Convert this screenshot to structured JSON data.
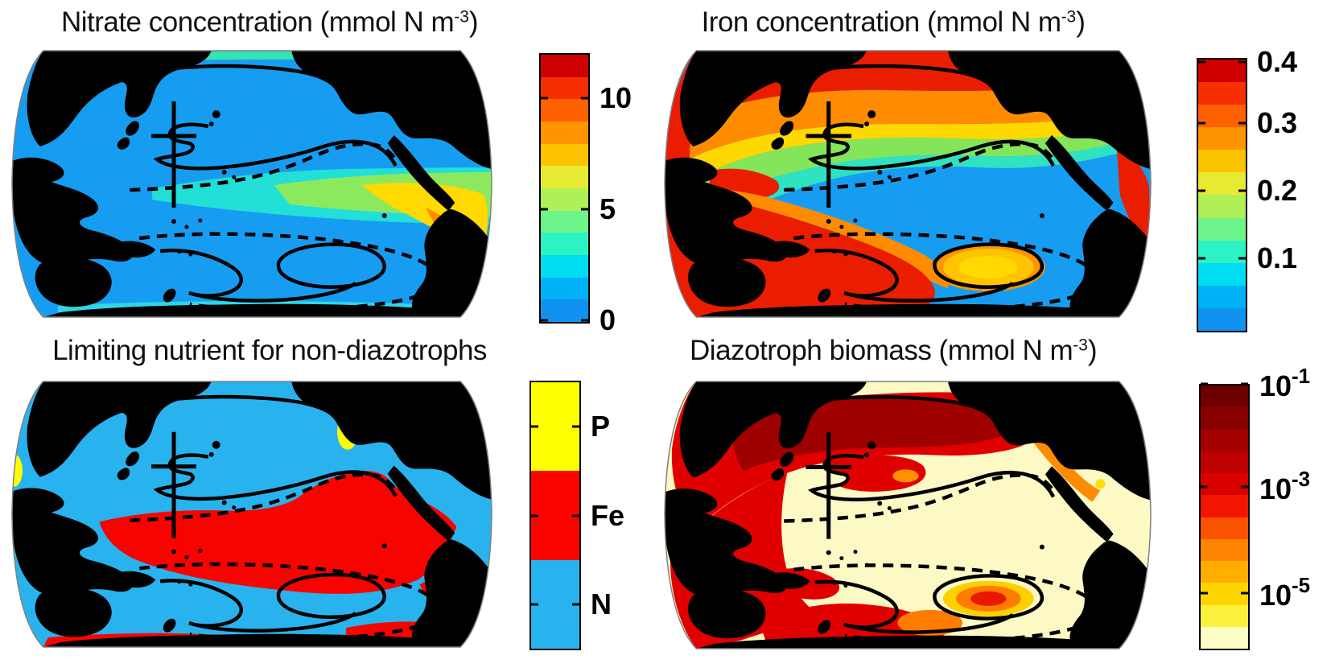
{
  "figure": {
    "background": "#ffffff",
    "layout": "2x2 grid of Pacific-centered global ocean map panels, each with a vertical colorbar on its right"
  },
  "panels": [
    {
      "key": "nitrate",
      "title": {
        "pre": "Nitrate concentration (mmol N m",
        "sup": "-3",
        "post": ")"
      },
      "colorbar": {
        "colors": [
          "#cf0000",
          "#f62e00",
          "#ff6000",
          "#ff9300",
          "#fcc400",
          "#e7ea33",
          "#aef055",
          "#6df58b",
          "#2df2c4",
          "#00dcf2",
          "#00b2f8",
          "#1292f0"
        ],
        "ticks": [
          {
            "base": "10",
            "sup": "",
            "pos": 0.167
          },
          {
            "base": "5",
            "sup": "",
            "pos": 0.577
          },
          {
            "base": "0",
            "sup": "",
            "pos": 0.988
          }
        ]
      }
    },
    {
      "key": "iron",
      "title": {
        "pre": "Iron concentration (mmol N m",
        "sup": "-3",
        "post": ")"
      },
      "colorbar": {
        "colors": [
          "#cf0000",
          "#f62e00",
          "#ff6000",
          "#ff9300",
          "#fcc400",
          "#e7ea33",
          "#aef055",
          "#6df58b",
          "#2df2c4",
          "#00dcf2",
          "#00b2f8",
          "#1292f0"
        ],
        "ticks": [
          {
            "base": "0.4",
            "sup": "",
            "pos": 0.015
          },
          {
            "base": "0.3",
            "sup": "",
            "pos": 0.238
          },
          {
            "base": "0.2",
            "sup": "",
            "pos": 0.484
          },
          {
            "base": "0.1",
            "sup": "",
            "pos": 0.73
          }
        ]
      }
    },
    {
      "key": "limiting-nutrient",
      "title": {
        "pre": "Limiting nutrient for non-diazotrophs",
        "sup": "",
        "post": ""
      },
      "colorbar": {
        "colors": [
          "#ffff00",
          "#fb0400",
          "#29b3ee"
        ],
        "ticks": [
          {
            "base": "P",
            "sup": "",
            "pos": 0.17
          },
          {
            "base": "Fe",
            "sup": "",
            "pos": 0.5
          },
          {
            "base": "N",
            "sup": "",
            "pos": 0.83
          }
        ]
      }
    },
    {
      "key": "diazotroph-biomass",
      "title": {
        "pre": "Diazotroph biomass (mmol N m",
        "sup": "-3",
        "post": ")"
      },
      "colorbar": {
        "colors": [
          "#6e0000",
          "#890000",
          "#a40000",
          "#bf0000",
          "#da0000",
          "#f21500",
          "#f95200",
          "#fd8400",
          "#ffae00",
          "#ffd500",
          "#fbf13d",
          "#fffdc6"
        ],
        "ticks": [
          {
            "base": "10",
            "sup": "-1",
            "pos": 0.0
          },
          {
            "base": "10",
            "sup": "-3",
            "pos": 0.387
          },
          {
            "base": "10",
            "sup": "-5",
            "pos": 0.785
          }
        ]
      }
    }
  ],
  "chart_data": [
    {
      "type": "heatmap",
      "title": "Nitrate concentration (mmol N m^-3)",
      "map": "global ocean, Pacific-centered projection, land in black",
      "colormap": "jet, ~12 discrete levels",
      "value_range": [
        0,
        12
      ],
      "colorbar_ticks": [
        0,
        5,
        10
      ],
      "units": "mmol N m^-3",
      "pattern": "Low nitrate (blue, ~0-2) over most subtropical gyres; elevated tongue (cyan-green, ~3-6) along eastern equatorial Pacific widening eastward; maximum (orange-red, >10) in upwelling zone off South America; slightly elevated band along subarctic and Southern Ocean edges",
      "annotations": [
        "solid black contour lines",
        "dashed black contour lines",
        "black cross marker in central North Pacific"
      ]
    },
    {
      "type": "heatmap",
      "title": "Iron concentration (mmol N m^-3)",
      "map": "global ocean, Pacific-centered projection, land in black",
      "colormap": "jet, ~12 discrete levels",
      "value_range": [
        0,
        0.4
      ],
      "colorbar_ticks": [
        0.1,
        0.2,
        0.3,
        0.4
      ],
      "units": "mmol N m^-3",
      "pattern": "High iron (red-orange, >0.3) across northern and western Pacific near Asian dust sources and around Australia/Indonesia and southern band; very low iron (blue, <0.1) over eastern equatorial and southeastern Pacific; yellow-orange patch (~0.2) in southeastern subtropical gyre inside solid contour",
      "annotations": [
        "solid black contour lines",
        "dashed black contour lines",
        "black cross marker in central North Pacific"
      ]
    },
    {
      "type": "heatmap",
      "title": "Limiting nutrient for non-diazotrophs",
      "map": "global ocean, Pacific-centered projection, land in black",
      "colormap": "3 discrete categories",
      "categories": [
        "P",
        "Fe",
        "N"
      ],
      "category_colors": {
        "P": "#ffff00",
        "Fe": "#fb0400",
        "N": "#29b3ee"
      },
      "pattern": "N limitation (blue) over most of the basin; Fe limitation (red) across central/eastern tropical Pacific between dashed contours, along eastern boundary and in a strip at the southern map edge; small P-limited patches (yellow) near eastern boundary coast, western marginal seas and northern Australia",
      "annotations": [
        "solid black contour lines",
        "dashed black contour lines",
        "black cross marker in central North Pacific"
      ]
    },
    {
      "type": "heatmap",
      "title": "Diazotroph biomass (mmol N m^-3)",
      "map": "global ocean, Pacific-centered projection, land in black",
      "colormap": "dark red to cream, ~12 discrete levels, log10 scale",
      "scale": "log10",
      "value_range": [
        "1e-6",
        "1e-1"
      ],
      "colorbar_ticks": [
        "10^-1",
        "10^-3",
        "10^-5"
      ],
      "units": "mmol N m^-3",
      "pattern": "High biomass (red to dark red, ~10^-2 to 10^-3) in western and northern tropical/subtropical Pacific and southwest Pacific; negligible biomass (cream, <10^-5) over eastern and central gyres; isolated orange-red patch in southeastern subtropical gyre inside solid contour; orange fringe along Central American coast",
      "annotations": [
        "solid black contour lines",
        "dashed black contour lines",
        "black cross marker in central North Pacific"
      ]
    }
  ]
}
